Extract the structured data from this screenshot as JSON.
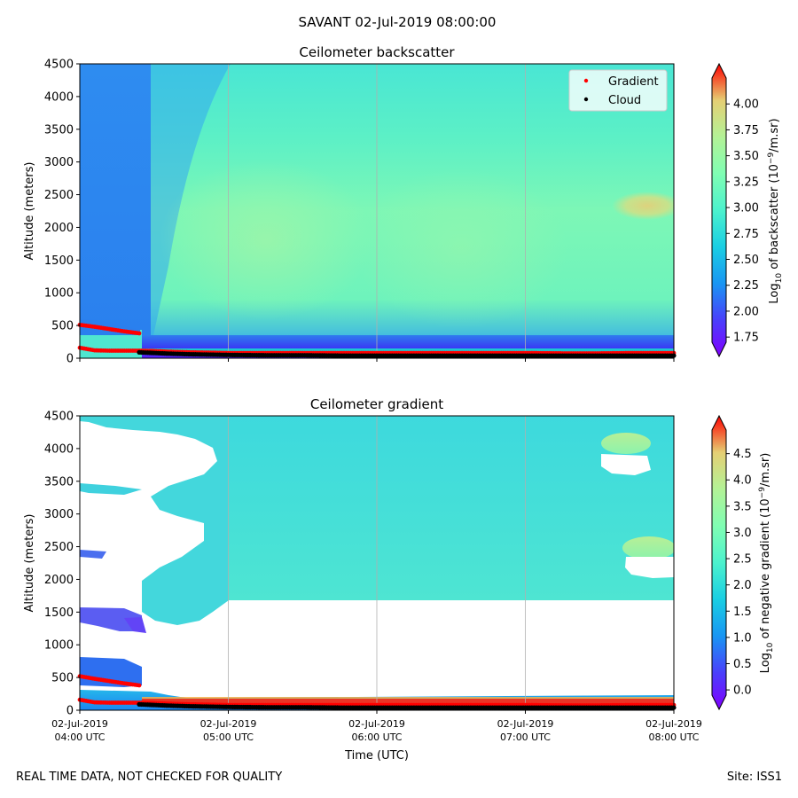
{
  "figure": {
    "title": "SAVANT 02-Jul-2019 08:00:00",
    "footer_left": "REAL TIME DATA, NOT CHECKED FOR QUALITY",
    "footer_right": "Site: ISS1"
  },
  "chart_data": [
    {
      "type": "heatmap",
      "title": "Ceilometer backscatter",
      "xlabel": "",
      "ylabel": "Altitude (meters)",
      "xlim_hours_utc": [
        4.0,
        8.0
      ],
      "x_tick_labels": [
        {
          "date": "02-Jul-2019",
          "time": "04:00 UTC"
        },
        {
          "date": "02-Jul-2019",
          "time": "05:00 UTC"
        },
        {
          "date": "02-Jul-2019",
          "time": "06:00 UTC"
        },
        {
          "date": "02-Jul-2019",
          "time": "07:00 UTC"
        },
        {
          "date": "02-Jul-2019",
          "time": "08:00 UTC"
        }
      ],
      "x_tick_values": [
        4,
        5,
        6,
        7,
        8
      ],
      "x_tick_labels_shown": false,
      "ylim": [
        0,
        4500
      ],
      "y_ticks": [
        0,
        500,
        1000,
        1500,
        2000,
        2500,
        3000,
        3500,
        4000,
        4500
      ],
      "vertical_grid": true,
      "colorbar": {
        "label_prefix": "Log",
        "label_sub": "10",
        "label_mid": " of backscatter (10",
        "label_sup": "−9",
        "label_suffix": "/m.sr)",
        "range": [
          1.7,
          4.25
        ],
        "ticks": [
          "1.75",
          "2.00",
          "2.25",
          "2.50",
          "2.75",
          "3.00",
          "3.25",
          "3.50",
          "3.75",
          "4.00"
        ],
        "colormap": "rainbow",
        "extend": "both"
      },
      "legend": {
        "placement": "upper right",
        "entries": [
          {
            "label": "Gradient",
            "color": "#ff0000"
          },
          {
            "label": "Cloud",
            "color": "#000000"
          }
        ]
      },
      "series": [
        {
          "name": "Gradient",
          "color": "#ff0000",
          "points": [
            [
              4.0,
              510
            ],
            [
              4.1,
              480
            ],
            [
              4.2,
              445
            ],
            [
              4.3,
              410
            ],
            [
              4.4,
              380
            ],
            [
              4.0,
              160
            ],
            [
              4.1,
              120
            ],
            [
              4.2,
              115
            ],
            [
              4.3,
              115
            ],
            [
              4.4,
              115
            ],
            [
              4.5,
              110
            ],
            [
              4.6,
              100
            ],
            [
              4.75,
              90
            ],
            [
              5.0,
              80
            ],
            [
              5.25,
              80
            ],
            [
              5.5,
              80
            ],
            [
              5.75,
              80
            ],
            [
              6.0,
              80
            ],
            [
              6.25,
              80
            ],
            [
              6.5,
              80
            ],
            [
              6.75,
              80
            ],
            [
              7.0,
              80
            ],
            [
              7.25,
              75
            ],
            [
              7.5,
              75
            ],
            [
              7.75,
              80
            ],
            [
              8.0,
              80
            ]
          ]
        },
        {
          "name": "Cloud",
          "color": "#000000",
          "points": [
            [
              4.4,
              90
            ],
            [
              4.5,
              80
            ],
            [
              4.6,
              70
            ],
            [
              4.75,
              60
            ],
            [
              5.0,
              50
            ],
            [
              5.25,
              45
            ],
            [
              5.5,
              45
            ],
            [
              5.75,
              40
            ],
            [
              6.0,
              40
            ],
            [
              6.25,
              40
            ],
            [
              6.5,
              40
            ],
            [
              6.75,
              40
            ],
            [
              7.0,
              40
            ],
            [
              7.25,
              40
            ],
            [
              7.5,
              40
            ],
            [
              7.75,
              40
            ],
            [
              8.0,
              40
            ]
          ]
        }
      ]
    },
    {
      "type": "heatmap",
      "title": "Ceilometer gradient",
      "xlabel": "Time (UTC)",
      "ylabel": "Altitude (meters)",
      "xlim_hours_utc": [
        4.0,
        8.0
      ],
      "x_tick_labels": [
        {
          "date": "02-Jul-2019",
          "time": "04:00 UTC"
        },
        {
          "date": "02-Jul-2019",
          "time": "05:00 UTC"
        },
        {
          "date": "02-Jul-2019",
          "time": "06:00 UTC"
        },
        {
          "date": "02-Jul-2019",
          "time": "07:00 UTC"
        },
        {
          "date": "02-Jul-2019",
          "time": "08:00 UTC"
        }
      ],
      "x_tick_values": [
        4,
        5,
        6,
        7,
        8
      ],
      "x_tick_labels_shown": true,
      "ylim": [
        0,
        4500
      ],
      "y_ticks": [
        0,
        500,
        1000,
        1500,
        2000,
        2500,
        3000,
        3500,
        4000,
        4500
      ],
      "vertical_grid": true,
      "colorbar": {
        "label_prefix": "Log",
        "label_sub": "10",
        "label_mid": " of negative gradient (10",
        "label_sup": "−9",
        "label_suffix": "/m.sr)",
        "range": [
          -0.1,
          4.95
        ],
        "ticks": [
          "0.0",
          "0.5",
          "1.0",
          "1.5",
          "2.0",
          "2.5",
          "3.0",
          "3.5",
          "4.0",
          "4.5"
        ],
        "colormap": "rainbow",
        "extend": "both"
      },
      "series": [
        {
          "name": "Gradient",
          "color": "#ff0000",
          "points": [
            [
              4.0,
              520
            ],
            [
              4.1,
              480
            ],
            [
              4.2,
              445
            ],
            [
              4.3,
              410
            ],
            [
              4.4,
              380
            ],
            [
              4.0,
              160
            ],
            [
              4.1,
              120
            ],
            [
              4.2,
              115
            ],
            [
              4.3,
              115
            ],
            [
              4.4,
              115
            ],
            [
              4.5,
              110
            ],
            [
              4.6,
              100
            ],
            [
              4.75,
              90
            ],
            [
              5.0,
              80
            ],
            [
              5.25,
              80
            ],
            [
              5.5,
              80
            ],
            [
              5.75,
              80
            ],
            [
              6.0,
              80
            ],
            [
              6.25,
              80
            ],
            [
              6.5,
              80
            ],
            [
              6.75,
              80
            ],
            [
              7.0,
              80
            ],
            [
              7.25,
              75
            ],
            [
              7.5,
              75
            ],
            [
              7.75,
              80
            ],
            [
              8.0,
              80
            ]
          ]
        },
        {
          "name": "Cloud",
          "color": "#000000",
          "points": [
            [
              4.4,
              90
            ],
            [
              4.5,
              80
            ],
            [
              4.6,
              70
            ],
            [
              4.75,
              60
            ],
            [
              5.0,
              50
            ],
            [
              5.25,
              45
            ],
            [
              5.5,
              45
            ],
            [
              5.75,
              40
            ],
            [
              6.0,
              40
            ],
            [
              6.25,
              40
            ],
            [
              6.5,
              40
            ],
            [
              6.75,
              40
            ],
            [
              7.0,
              40
            ],
            [
              7.25,
              40
            ],
            [
              7.5,
              40
            ],
            [
              7.75,
              40
            ],
            [
              8.0,
              40
            ]
          ]
        }
      ]
    }
  ]
}
